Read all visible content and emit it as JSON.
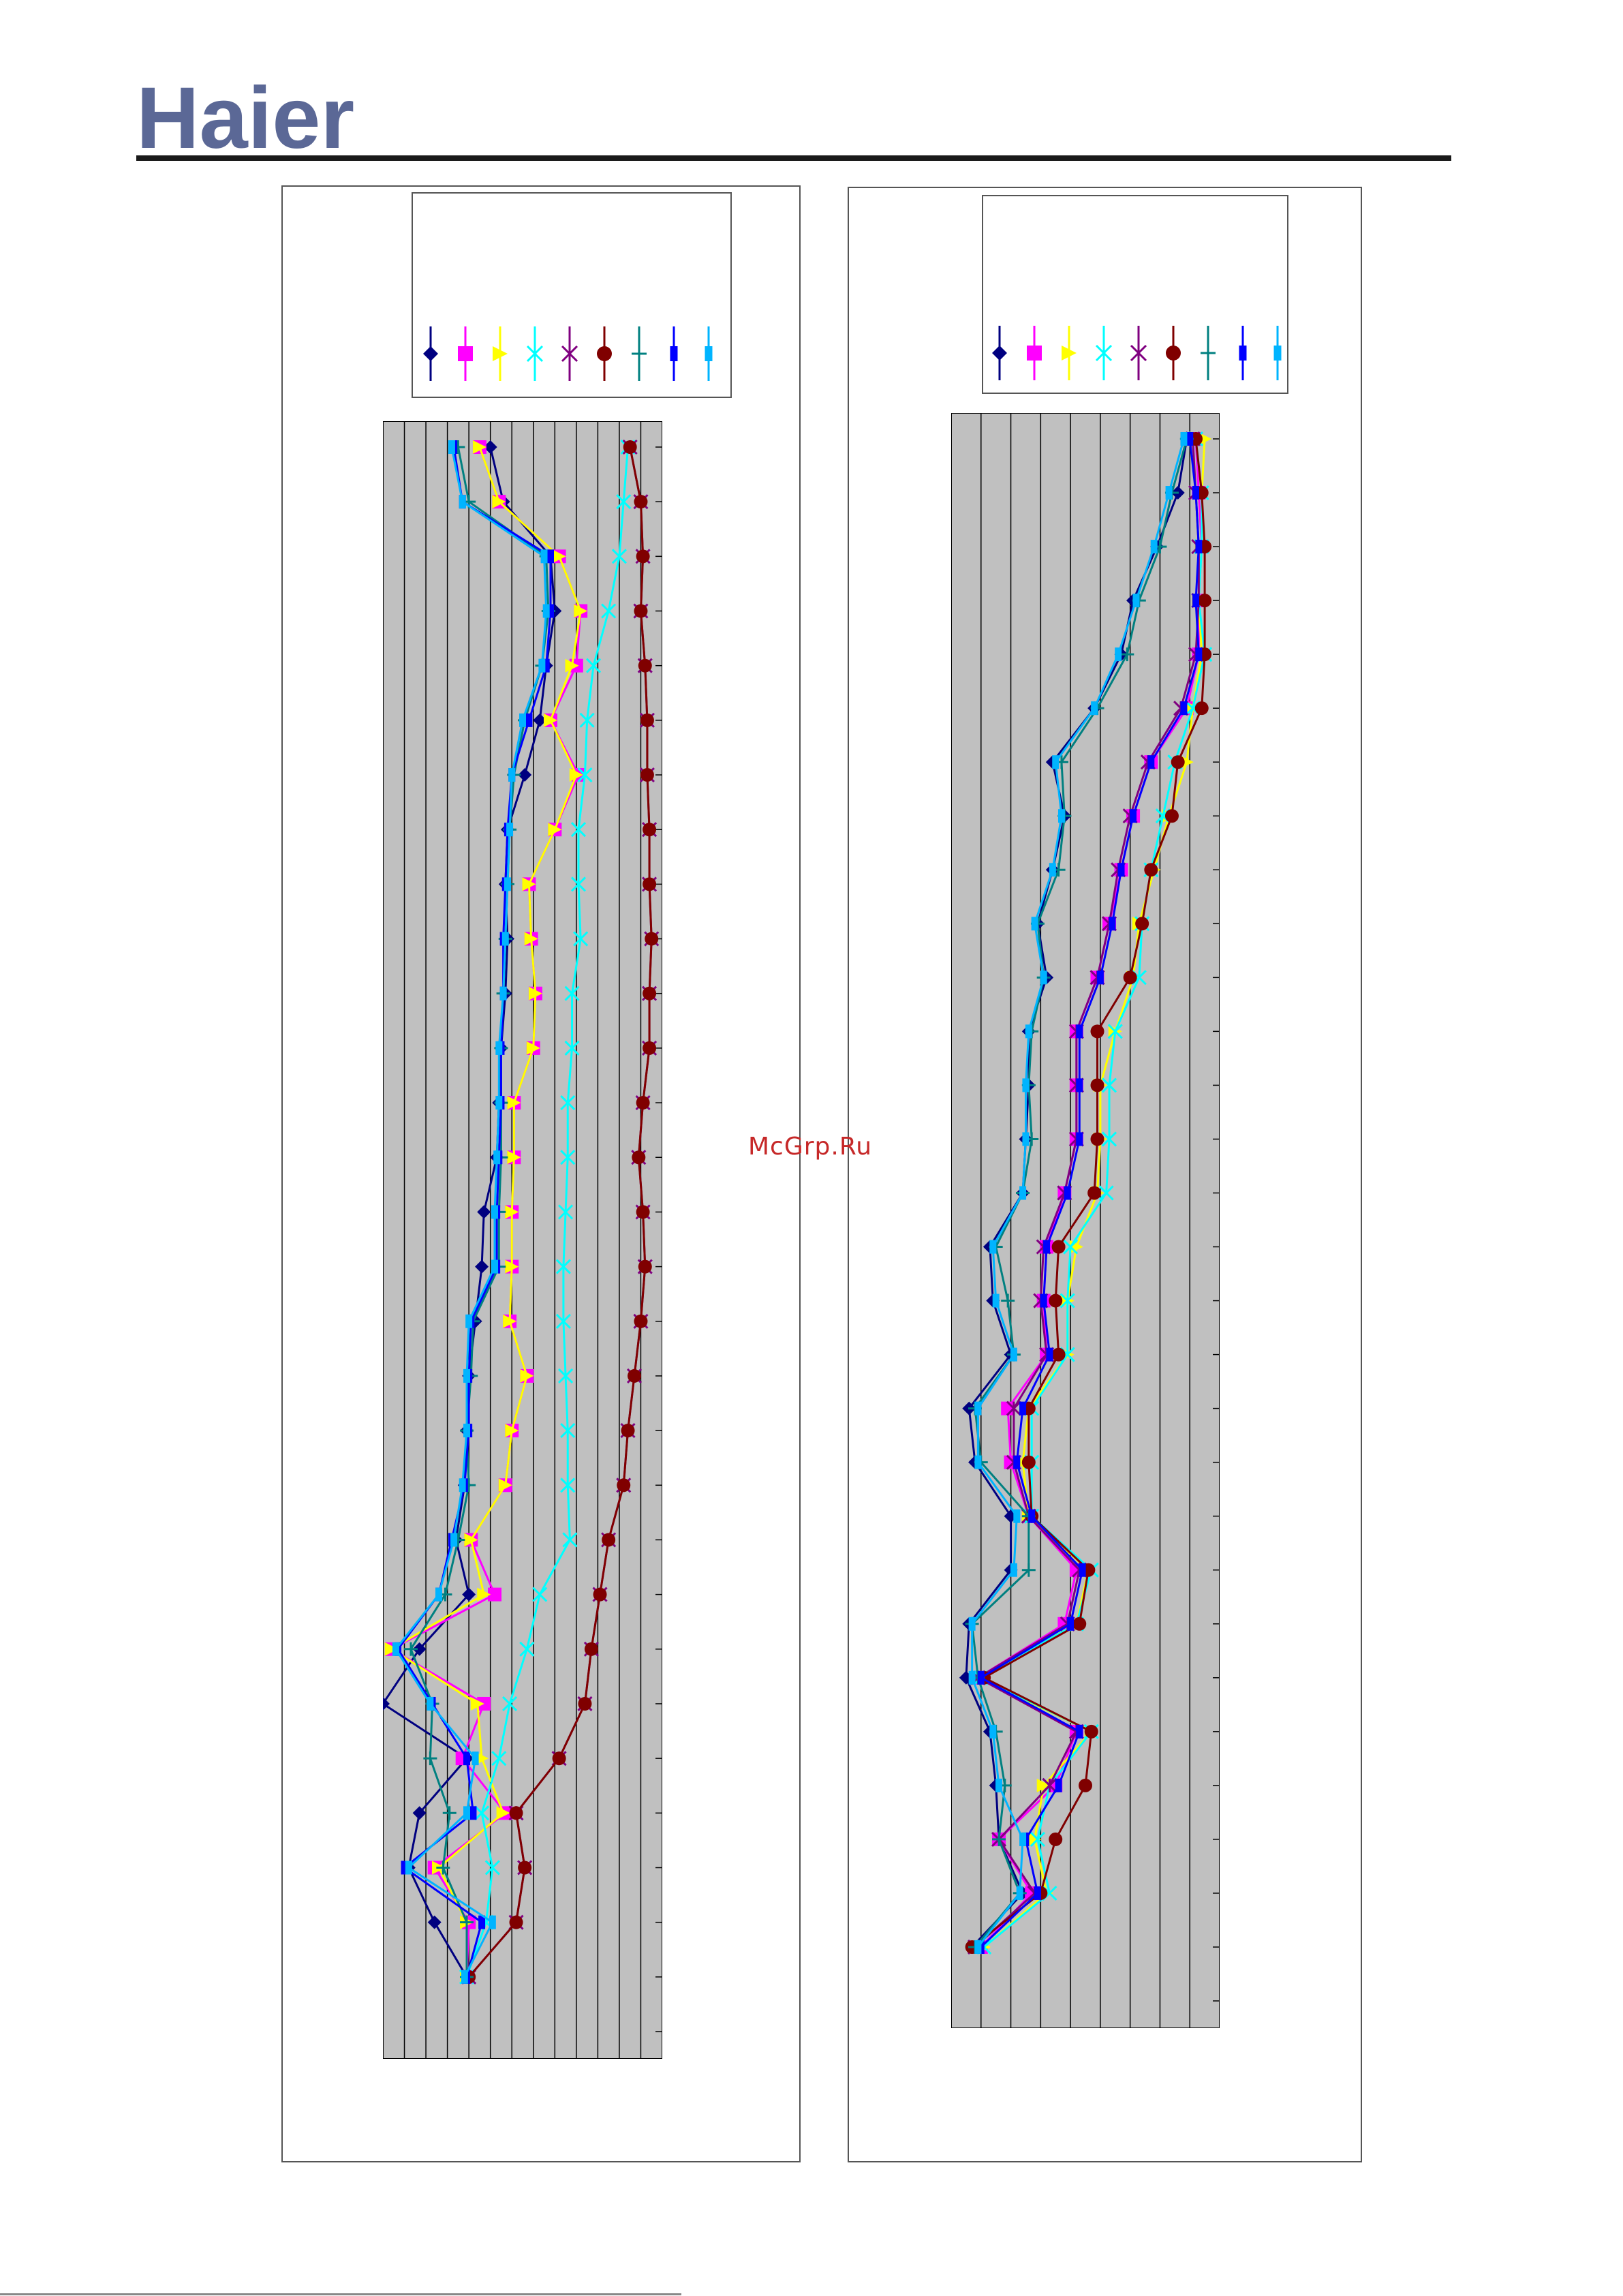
{
  "brand": {
    "logo_text": "Haier",
    "logo_color": "#5b6896"
  },
  "watermark": {
    "text": "McGrp.Ru",
    "color": "#c62828"
  },
  "chart_data": [
    {
      "type": "line",
      "orientation": "vertical",
      "title": "",
      "xlabel": "",
      "ylabel": "",
      "grid": true,
      "legend_position": "top",
      "background": "#c0c0c0",
      "xlim": [
        0,
        13
      ],
      "ylim": [
        1,
        30
      ],
      "series": [
        {
          "name": "",
          "marker": "diamond",
          "color": "#000080",
          "values": [
            5.0,
            5.6,
            7.8,
            8.0,
            7.6,
            7.3,
            6.6,
            5.8,
            5.7,
            5.8,
            5.7,
            5.5,
            5.4,
            5.3,
            4.7,
            4.6,
            4.3,
            4.0,
            3.9,
            3.8,
            3.4,
            4.0,
            1.7,
            0.0,
            3.9,
            1.7,
            1.2,
            2.4,
            3.9
          ]
        },
        {
          "name": "",
          "marker": "square",
          "color": "#ff00ff",
          "values": [
            4.5,
            5.4,
            8.2,
            9.2,
            9.0,
            7.8,
            9.1,
            8.0,
            6.8,
            6.9,
            7.1,
            7.0,
            6.1,
            6.1,
            6.0,
            6.0,
            5.9,
            6.7,
            6.0,
            5.7,
            4.1,
            5.2,
            0.4,
            4.7,
            3.7,
            5.7,
            2.4,
            4.0,
            3.9
          ]
        },
        {
          "name": "",
          "marker": "triangle",
          "color": "#ffff00",
          "values": [
            4.5,
            5.4,
            8.2,
            9.2,
            8.8,
            7.8,
            9.0,
            8.0,
            6.8,
            6.9,
            7.1,
            7.0,
            6.1,
            6.1,
            6.0,
            6.0,
            5.9,
            6.7,
            6.0,
            5.7,
            4.1,
            4.7,
            0.4,
            4.4,
            4.6,
            5.6,
            2.6,
            3.9,
            3.9
          ]
        },
        {
          "name": "",
          "marker": "x",
          "color": "#00ffff",
          "values": [
            11.4,
            11.2,
            11.0,
            10.5,
            9.8,
            9.5,
            9.4,
            9.1,
            9.1,
            9.2,
            8.8,
            8.8,
            8.6,
            8.6,
            8.5,
            8.4,
            8.4,
            8.5,
            8.6,
            8.6,
            8.7,
            7.3,
            6.7,
            5.9,
            5.4,
            4.6,
            5.1,
            4.8,
            3.9
          ]
        },
        {
          "name": "",
          "marker": "asterisk",
          "color": "#800080",
          "values": [
            11.5,
            12.0,
            12.1,
            12.0,
            12.2,
            12.3,
            12.3,
            12.4,
            12.4,
            12.5,
            12.4,
            12.4,
            12.1,
            11.9,
            12.1,
            12.2,
            12.0,
            11.7,
            11.4,
            11.2,
            10.5,
            10.1,
            9.7,
            9.4,
            8.2,
            6.2,
            6.6,
            6.2,
            4.0
          ]
        },
        {
          "name": "",
          "marker": "circle",
          "color": "#800000",
          "values": [
            11.5,
            12.0,
            12.1,
            12.0,
            12.2,
            12.3,
            12.3,
            12.4,
            12.4,
            12.5,
            12.4,
            12.4,
            12.1,
            11.9,
            12.1,
            12.2,
            12.0,
            11.7,
            11.4,
            11.2,
            10.5,
            10.1,
            9.7,
            9.4,
            8.2,
            6.2,
            6.6,
            6.2,
            4.0
          ]
        },
        {
          "name": "",
          "marker": "dash",
          "color": "#008080",
          "values": [
            3.5,
            4.0,
            7.6,
            7.7,
            7.4,
            6.6,
            6.1,
            5.9,
            5.8,
            5.7,
            5.6,
            5.5,
            5.5,
            5.5,
            5.4,
            5.4,
            4.2,
            4.1,
            3.9,
            4.0,
            3.5,
            2.9,
            1.3,
            2.3,
            2.2,
            3.1,
            2.8,
            3.9,
            3.9
          ]
        },
        {
          "name": "",
          "marker": "bar",
          "color": "#0000ff",
          "values": [
            3.3,
            3.7,
            7.8,
            7.8,
            7.6,
            6.8,
            6.0,
            5.8,
            5.7,
            5.6,
            5.6,
            5.5,
            5.5,
            5.4,
            5.3,
            5.3,
            4.1,
            4.0,
            4.0,
            3.8,
            3.2,
            2.6,
            0.7,
            2.3,
            3.9,
            4.2,
            1.0,
            4.6,
            3.9
          ]
        },
        {
          "name": "",
          "marker": "bar",
          "color": "#00b4ff",
          "values": [
            3.2,
            3.7,
            7.5,
            7.6,
            7.4,
            6.5,
            6.0,
            5.9,
            5.8,
            5.7,
            5.6,
            5.4,
            5.4,
            5.3,
            5.2,
            5.2,
            4.0,
            3.9,
            3.9,
            3.7,
            3.3,
            2.6,
            0.6,
            2.2,
            4.3,
            3.9,
            1.2,
            5.1,
            3.8
          ]
        }
      ]
    },
    {
      "type": "line",
      "orientation": "vertical",
      "title": "",
      "xlabel": "",
      "ylabel": "",
      "grid": true,
      "legend_position": "top",
      "background": "#c0c0c0",
      "xlim": [
        0,
        9
      ],
      "ylim": [
        1,
        30
      ],
      "series": [
        {
          "name": "",
          "marker": "diamond",
          "color": "#000080",
          "values": [
            7.9,
            7.6,
            6.9,
            6.1,
            5.7,
            4.8,
            3.4,
            3.8,
            3.4,
            2.9,
            3.2,
            2.6,
            2.6,
            2.5,
            2.4,
            1.3,
            1.4,
            2.0,
            0.6,
            0.8,
            2.0,
            2.0,
            0.6,
            0.5,
            1.3,
            1.5,
            1.6,
            2.4,
            0.7
          ]
        },
        {
          "name": "",
          "marker": "square",
          "color": "#ff00ff",
          "values": [
            8.2,
            8.3,
            8.4,
            8.3,
            8.3,
            7.9,
            6.7,
            6.1,
            5.7,
            5.3,
            4.9,
            4.2,
            4.2,
            4.2,
            3.8,
            3.2,
            3.1,
            3.2,
            1.9,
            2.0,
            2.6,
            4.2,
            3.8,
            0.9,
            4.2,
            3.5,
            1.6,
            2.7,
            1.0
          ]
        },
        {
          "name": "",
          "marker": "triangle",
          "color": "#ffff00",
          "values": [
            8.5,
            8.4,
            8.4,
            8.3,
            8.4,
            8.1,
            7.9,
            7.3,
            6.8,
            6.3,
            6.1,
            5.5,
            5.0,
            5.0,
            4.9,
            4.2,
            3.9,
            3.9,
            2.6,
            2.4,
            2.6,
            4.6,
            4.2,
            0.9,
            4.7,
            3.1,
            2.8,
            3.2,
            1.1
          ]
        },
        {
          "name": "",
          "marker": "x",
          "color": "#00ffff",
          "values": [
            8.2,
            8.4,
            8.4,
            8.3,
            8.5,
            8.1,
            7.5,
            7.1,
            6.7,
            6.4,
            6.3,
            5.5,
            5.3,
            5.3,
            5.2,
            4.0,
            3.9,
            3.9,
            2.7,
            2.7,
            2.7,
            4.7,
            4.2,
            1.0,
            4.7,
            3.3,
            2.9,
            3.3,
            1.1
          ]
        },
        {
          "name": "",
          "marker": "asterisk",
          "color": "#800080",
          "values": [
            8.1,
            8.2,
            8.3,
            8.3,
            8.2,
            7.7,
            6.6,
            6.0,
            5.6,
            5.3,
            4.9,
            4.2,
            4.2,
            4.2,
            3.8,
            3.1,
            3.0,
            3.2,
            2.1,
            2.1,
            2.6,
            4.3,
            3.9,
            0.9,
            4.2,
            3.3,
            1.6,
            2.8,
            0.8
          ]
        },
        {
          "name": "",
          "marker": "circle",
          "color": "#800000",
          "values": [
            8.2,
            8.4,
            8.5,
            8.5,
            8.5,
            8.4,
            7.6,
            7.4,
            6.7,
            6.4,
            6.0,
            4.9,
            4.9,
            4.9,
            4.8,
            3.6,
            3.5,
            3.6,
            2.6,
            2.6,
            2.7,
            4.6,
            4.3,
            1.1,
            4.7,
            4.5,
            3.5,
            3.0,
            0.7
          ]
        },
        {
          "name": "",
          "marker": "dash",
          "color": "#008080",
          "values": [
            7.9,
            7.4,
            7.0,
            6.3,
            5.9,
            4.9,
            3.7,
            3.8,
            3.6,
            2.9,
            3.1,
            2.7,
            2.6,
            2.7,
            2.4,
            1.5,
            1.9,
            2.1,
            0.8,
            1.0,
            2.6,
            2.6,
            0.7,
            0.9,
            1.5,
            1.8,
            1.6,
            2.3,
            0.8
          ]
        },
        {
          "name": "",
          "marker": "bar",
          "color": "#0000ff",
          "values": [
            8.0,
            8.2,
            8.3,
            8.2,
            8.3,
            7.8,
            6.7,
            6.1,
            5.7,
            5.4,
            5.0,
            4.3,
            4.3,
            4.3,
            3.9,
            3.2,
            3.1,
            3.3,
            2.4,
            2.2,
            2.7,
            4.4,
            4.0,
            1.0,
            4.3,
            3.6,
            2.5,
            2.9,
            1.0
          ]
        },
        {
          "name": "",
          "marker": "bar",
          "color": "#00b4ff",
          "values": [
            7.8,
            7.3,
            6.8,
            6.2,
            5.6,
            4.8,
            3.5,
            3.7,
            3.4,
            2.8,
            3.1,
            2.6,
            2.5,
            2.5,
            2.4,
            1.4,
            1.5,
            2.1,
            0.9,
            0.9,
            2.2,
            2.1,
            0.7,
            0.7,
            1.4,
            1.6,
            2.4,
            2.3,
            0.9
          ]
        }
      ]
    }
  ]
}
